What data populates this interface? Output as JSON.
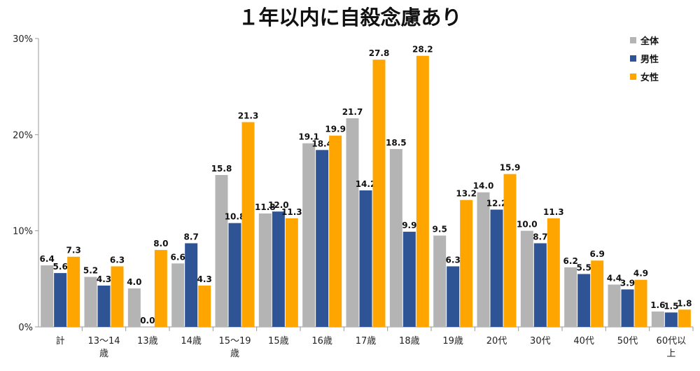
{
  "chart_data": {
    "type": "bar",
    "title": "１年以内に自殺念慮あり",
    "categories": [
      "計",
      "13〜14歳",
      "13歳",
      "14歳",
      "15〜19歳",
      "15歳",
      "16歳",
      "17歳",
      "18歳",
      "19歳",
      "20代",
      "30代",
      "40代",
      "50代",
      "60代以上"
    ],
    "series": [
      {
        "name": "全体",
        "color": "#b4b4b4",
        "values": [
          6.4,
          5.2,
          4.0,
          6.6,
          15.8,
          11.8,
          19.1,
          21.7,
          18.5,
          9.5,
          14.0,
          10.0,
          6.2,
          4.4,
          1.6
        ]
      },
      {
        "name": "男性",
        "color": "#2e5496",
        "values": [
          5.6,
          4.3,
          0.0,
          8.7,
          10.8,
          12.0,
          18.4,
          14.2,
          9.9,
          6.3,
          12.2,
          8.7,
          5.5,
          3.9,
          1.5
        ]
      },
      {
        "name": "女性",
        "color": "#ffa500",
        "values": [
          7.3,
          6.3,
          8.0,
          4.3,
          21.3,
          11.3,
          19.9,
          27.8,
          28.2,
          13.2,
          15.9,
          11.3,
          6.9,
          4.9,
          1.8
        ]
      }
    ],
    "yticks": [
      "0%",
      "10%",
      "20%",
      "30%"
    ],
    "ylim": [
      0,
      30
    ],
    "grid": false,
    "legend": "top-right"
  }
}
